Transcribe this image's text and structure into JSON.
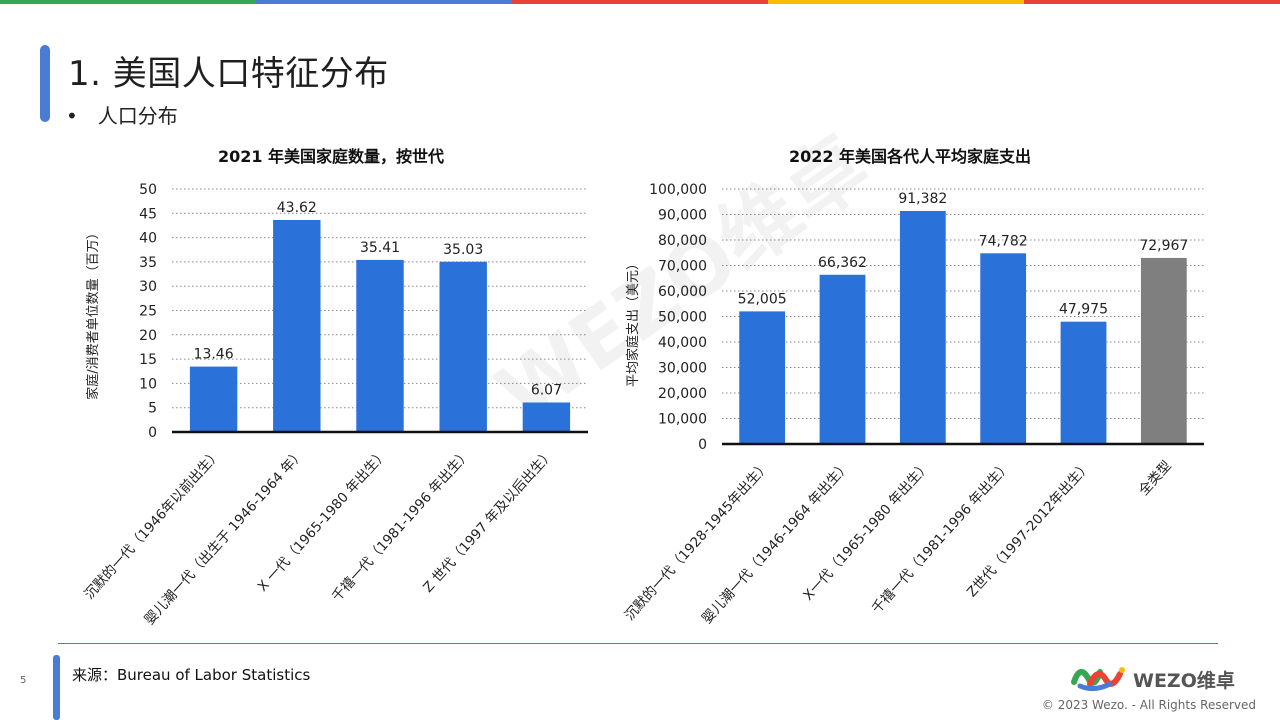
{
  "page": {
    "title": "1. 美国人口特征分布",
    "bullet": "人口分布",
    "bullet_mark": "•",
    "page_number": "5",
    "source": "来源：Bureau of Labor Statistics",
    "logo_text": "WEZO维卓",
    "copyright": "© 2023 Wezo. - All Rights Reserved",
    "watermark": "WEZO维卓",
    "top_bar_colors": [
      "#34a853",
      "#4a7bd5",
      "#ea4335",
      "#fbbc05",
      "#ea4335"
    ]
  },
  "chart_data": [
    {
      "type": "bar",
      "title": "2021 年美国家庭数量，按世代",
      "xlabel": "",
      "ylabel": "家庭/消费者单位数量（百万）",
      "ylim": [
        0,
        50
      ],
      "yticks": [
        "0",
        "5",
        "10",
        "15",
        "20",
        "25",
        "30",
        "35",
        "40",
        "45",
        "50"
      ],
      "categories": [
        "沉默的一代（1946年以前出生）",
        "婴儿潮一代（出生于 1946-1964 年）",
        "X 一代（1965-1980 年出生）",
        "千禧一代（1981-1996 年出生）",
        "Z 世代（1997 年及以后出生）"
      ],
      "values": [
        13.46,
        43.62,
        35.41,
        35.03,
        6.07
      ],
      "data_labels": [
        "13.46",
        "43.62",
        "35.41",
        "35.03",
        "6.07"
      ],
      "colors": [
        "#2a72d9",
        "#2a72d9",
        "#2a72d9",
        "#2a72d9",
        "#2a72d9"
      ],
      "grid": true
    },
    {
      "type": "bar",
      "title": "2022 年美国各代人平均家庭支出",
      "xlabel": "",
      "ylabel": "平均家庭支出（美元）",
      "ylim": [
        0,
        100000
      ],
      "yticks": [
        "0",
        "10,000",
        "20,000",
        "30,000",
        "40,000",
        "50,000",
        "60,000",
        "70,000",
        "80,000",
        "90,000",
        "100,000"
      ],
      "categories": [
        "沉默的一代（1928-1945年出生）",
        "婴儿潮一代（1946-1964 年出生）",
        "X一代（1965-1980 年出生）",
        "千禧一代（1981-1996 年出生）",
        "Z世代（1997-2012年出生）",
        "全类型"
      ],
      "values": [
        52005,
        66362,
        91382,
        74782,
        47975,
        72967
      ],
      "data_labels": [
        "52,005",
        "66,362",
        "91,382",
        "74,782",
        "47,975",
        "72,967"
      ],
      "colors": [
        "#2a72d9",
        "#2a72d9",
        "#2a72d9",
        "#2a72d9",
        "#2a72d9",
        "#7f7f7f"
      ],
      "grid": true
    }
  ]
}
